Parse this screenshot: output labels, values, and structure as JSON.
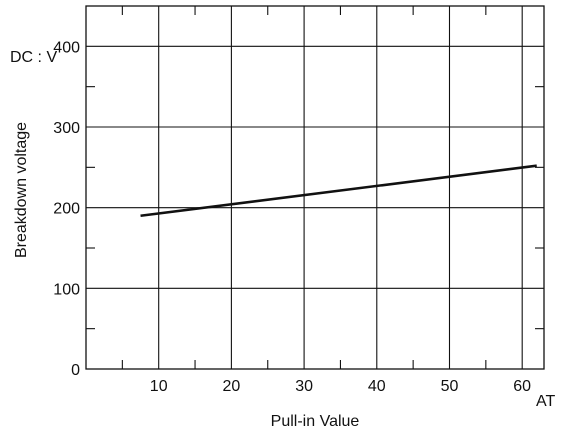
{
  "chart_data": {
    "type": "line",
    "xlabel": "Pull-in Value",
    "ylabel": "Breakdown voltage",
    "x_unit": "AT",
    "y_unit": "DC : V",
    "xlim": [
      0,
      63
    ],
    "ylim": [
      0,
      450
    ],
    "x_ticks": [
      10,
      20,
      30,
      40,
      50,
      60
    ],
    "y_ticks": [
      0,
      100,
      200,
      300,
      400
    ],
    "x_tick_labels": [
      "10",
      "20",
      "30",
      "40",
      "50",
      "60"
    ],
    "y_tick_labels": [
      "0",
      "100",
      "200",
      "300",
      "400"
    ],
    "grid": true,
    "series": [
      {
        "x": [
          7.5,
          62
        ],
        "y": [
          190,
          252
        ]
      }
    ],
    "colors": {
      "line": "#111111",
      "grid": "#111111"
    }
  }
}
